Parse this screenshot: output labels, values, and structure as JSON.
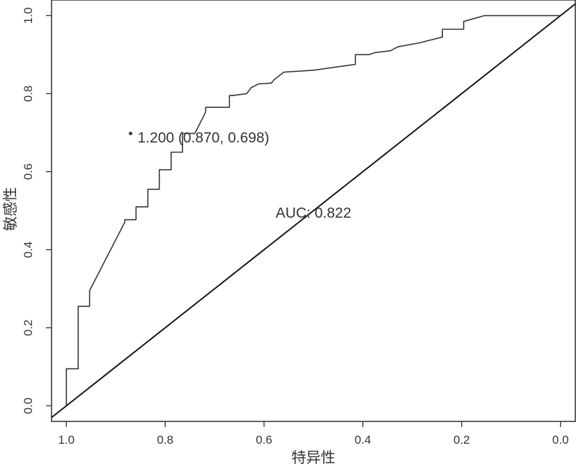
{
  "chart_data": {
    "type": "line",
    "xlabel": "特异性",
    "ylabel": "敏感性",
    "xlim": [
      1.03,
      -0.03
    ],
    "ylim": [
      -0.04,
      1.04
    ],
    "grid": false,
    "x_ticks": [
      "1.0",
      "0.8",
      "0.6",
      "0.4",
      "0.2",
      "0.0"
    ],
    "x_tick_values": [
      1.0,
      0.8,
      0.6,
      0.4,
      0.2,
      0.0
    ],
    "y_ticks": [
      "0.0",
      "0.2",
      "0.4",
      "0.6",
      "0.8",
      "1.0"
    ],
    "y_tick_values": [
      0.0,
      0.2,
      0.4,
      0.6,
      0.8,
      1.0
    ],
    "series": [
      {
        "kind": "roc",
        "x": [
          1.0,
          1.0,
          0.976,
          0.976,
          0.953,
          0.953,
          0.882,
          0.882,
          0.859,
          0.859,
          0.835,
          0.835,
          0.812,
          0.812,
          0.788,
          0.788,
          0.765,
          0.765,
          0.74,
          0.74,
          0.74,
          0.718,
          0.718,
          0.67,
          0.67,
          0.664,
          0.635,
          0.626,
          0.611,
          0.585,
          0.58,
          0.56,
          0.5,
          0.5,
          0.415,
          0.415,
          0.387,
          0.376,
          0.344,
          0.329,
          0.286,
          0.239,
          0.239,
          0.196,
          0.196,
          0.154,
          0.1,
          0.04,
          0.0
        ],
        "y": [
          0.0,
          0.095,
          0.095,
          0.255,
          0.255,
          0.295,
          0.47,
          0.477,
          0.477,
          0.51,
          0.51,
          0.555,
          0.555,
          0.605,
          0.605,
          0.65,
          0.65,
          0.698,
          0.698,
          0.698,
          0.698,
          0.753,
          0.765,
          0.765,
          0.795,
          0.795,
          0.8,
          0.815,
          0.825,
          0.827,
          0.835,
          0.855,
          0.86,
          0.86,
          0.875,
          0.9,
          0.9,
          0.905,
          0.91,
          0.92,
          0.93,
          0.945,
          0.965,
          0.965,
          0.985,
          1.0,
          1.0,
          1.0,
          1.0
        ]
      },
      {
        "kind": "reference",
        "x": [
          1.03,
          -0.03
        ],
        "y": [
          -0.03,
          1.03
        ]
      }
    ],
    "best_point": {
      "x": 0.87,
      "y": 0.698
    },
    "best_point_label": "1.200 (0.870, 0.698)",
    "auc_label": "AUC: 0.822",
    "auc_position": {
      "x": 0.5,
      "y": 0.495
    }
  }
}
